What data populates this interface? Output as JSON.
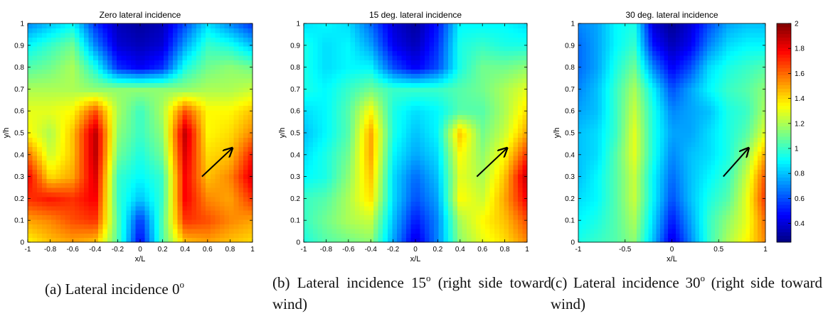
{
  "chart_data": [
    {
      "type": "heatmap",
      "title": "Zero lateral incidence",
      "xlabel": "x/L",
      "ylabel": "y/h",
      "xlim": [
        -1,
        1
      ],
      "ylim": [
        0,
        1
      ],
      "xticks": [
        "-1",
        "-0.8",
        "-0.6",
        "-0.4",
        "-0.2",
        "0",
        "0.2",
        "0.4",
        "0.6",
        "0.8",
        "1"
      ],
      "yticks": [
        "0",
        "0.1",
        "0.2",
        "0.3",
        "0.4",
        "0.5",
        "0.6",
        "0.7",
        "0.8",
        "0.9",
        "1"
      ],
      "x": [
        -1,
        -0.8,
        -0.6,
        -0.4,
        -0.2,
        0,
        0.2,
        0.4,
        0.6,
        0.8,
        1
      ],
      "y": [
        0,
        0.1,
        0.2,
        0.3,
        0.4,
        0.5,
        0.6,
        0.7,
        0.8,
        0.9,
        1
      ],
      "z": [
        [
          1.35,
          1.45,
          1.5,
          1.45,
          1.05,
          0.45,
          1.05,
          1.45,
          1.5,
          1.45,
          1.4
        ],
        [
          1.5,
          1.55,
          1.65,
          1.7,
          1.05,
          0.55,
          1.05,
          1.7,
          1.65,
          1.55,
          1.5
        ],
        [
          1.7,
          1.75,
          1.7,
          1.8,
          1.0,
          0.8,
          1.0,
          1.8,
          1.55,
          1.5,
          1.7
        ],
        [
          1.8,
          1.4,
          1.5,
          1.85,
          1.0,
          0.9,
          1.0,
          1.8,
          1.45,
          1.55,
          1.85
        ],
        [
          1.6,
          1.25,
          1.45,
          1.9,
          1.1,
          0.95,
          1.1,
          1.85,
          1.4,
          1.45,
          1.75
        ],
        [
          1.35,
          1.2,
          1.45,
          1.9,
          1.15,
          1.0,
          1.15,
          1.9,
          1.35,
          1.4,
          1.55
        ],
        [
          1.3,
          1.3,
          1.35,
          1.65,
          1.2,
          1.0,
          1.2,
          1.65,
          1.35,
          1.35,
          1.45
        ],
        [
          1.2,
          1.2,
          1.2,
          1.15,
          1.15,
          1.15,
          1.15,
          1.15,
          1.2,
          1.2,
          1.25
        ],
        [
          1.05,
          1.1,
          1.2,
          0.95,
          0.55,
          0.45,
          0.55,
          0.95,
          1.1,
          1.15,
          1.1
        ],
        [
          0.9,
          1.0,
          1.1,
          0.7,
          0.4,
          0.35,
          0.4,
          0.75,
          1.0,
          0.95,
          0.8
        ],
        [
          0.7,
          0.8,
          0.9,
          0.55,
          0.35,
          0.3,
          0.35,
          0.6,
          0.85,
          0.7,
          0.55
        ]
      ]
    },
    {
      "type": "heatmap",
      "title": "15 deg. lateral incidence",
      "xlabel": "x/L",
      "ylabel": "y/h",
      "xlim": [
        -1,
        1
      ],
      "ylim": [
        0,
        1
      ],
      "xticks": [
        "-1",
        "-0.8",
        "-0.6",
        "-0.4",
        "-0.2",
        "0",
        "0.2",
        "0.4",
        "0.6",
        "0.8",
        "1"
      ],
      "yticks": [
        "0",
        "0.1",
        "0.2",
        "0.3",
        "0.4",
        "0.5",
        "0.6",
        "0.7",
        "0.8",
        "0.9",
        "1"
      ],
      "x": [
        -1,
        -0.8,
        -0.6,
        -0.4,
        -0.2,
        0,
        0.2,
        0.4,
        0.6,
        0.8,
        1
      ],
      "y": [
        0,
        0.1,
        0.2,
        0.3,
        0.4,
        0.5,
        0.6,
        0.7,
        0.8,
        0.9,
        1
      ],
      "z": [
        [
          0.95,
          1.05,
          1.1,
          1.15,
          0.75,
          0.4,
          0.7,
          1.15,
          1.3,
          1.4,
          1.55
        ],
        [
          1.0,
          1.1,
          1.2,
          1.25,
          0.8,
          0.5,
          0.7,
          1.2,
          1.35,
          1.45,
          1.65
        ],
        [
          1.0,
          1.05,
          1.2,
          1.4,
          0.85,
          0.6,
          0.75,
          1.35,
          1.25,
          1.5,
          1.8
        ],
        [
          0.9,
          0.95,
          1.15,
          1.45,
          0.85,
          0.65,
          0.8,
          1.3,
          1.2,
          1.45,
          1.9
        ],
        [
          0.85,
          0.95,
          1.1,
          1.5,
          0.9,
          0.75,
          0.85,
          1.35,
          1.15,
          1.35,
          1.7
        ],
        [
          0.8,
          0.9,
          1.05,
          1.5,
          0.95,
          0.8,
          0.9,
          1.45,
          1.1,
          1.25,
          1.5
        ],
        [
          0.85,
          0.9,
          1.05,
          1.35,
          0.95,
          0.85,
          0.9,
          1.05,
          1.05,
          1.2,
          1.4
        ],
        [
          0.95,
          0.9,
          1.0,
          1.1,
          1.0,
          1.0,
          1.0,
          1.05,
          1.1,
          1.2,
          1.3
        ],
        [
          0.95,
          0.85,
          0.9,
          0.9,
          0.6,
          0.45,
          0.6,
          0.95,
          1.1,
          1.1,
          1.15
        ],
        [
          0.95,
          0.85,
          0.9,
          0.75,
          0.45,
          0.35,
          0.55,
          0.95,
          1.0,
          0.95,
          0.95
        ],
        [
          0.85,
          0.9,
          0.85,
          0.65,
          0.4,
          0.3,
          0.5,
          0.9,
          0.9,
          0.9,
          0.85
        ]
      ]
    },
    {
      "type": "heatmap",
      "title": "30 deg. lateral incidence",
      "xlabel": "x/L",
      "ylabel": "y/h",
      "xlim": [
        -1,
        1
      ],
      "ylim": [
        0,
        1
      ],
      "xticks": [
        "-1",
        "-0.5",
        "0",
        "0.5",
        "1"
      ],
      "yticks": [
        "0",
        "0.1",
        "0.2",
        "0.3",
        "0.4",
        "0.5",
        "0.6",
        "0.7",
        "0.8",
        "0.9",
        "1"
      ],
      "x": [
        -1,
        -0.8,
        -0.6,
        -0.4,
        -0.2,
        0,
        0.2,
        0.4,
        0.6,
        0.8,
        1
      ],
      "y": [
        0,
        0.1,
        0.2,
        0.3,
        0.4,
        0.5,
        0.6,
        0.7,
        0.8,
        0.9,
        1
      ],
      "z": [
        [
          0.95,
          1.0,
          1.05,
          1.15,
          0.8,
          0.4,
          0.7,
          1.0,
          1.2,
          1.35,
          1.55
        ],
        [
          0.9,
          0.95,
          1.05,
          1.2,
          0.85,
          0.5,
          0.75,
          1.0,
          1.15,
          1.3,
          1.6
        ],
        [
          0.85,
          0.9,
          1.05,
          1.25,
          0.9,
          0.6,
          0.8,
          0.95,
          1.05,
          1.3,
          1.7
        ],
        [
          0.8,
          0.9,
          1.05,
          1.25,
          0.9,
          0.65,
          0.8,
          0.9,
          1.0,
          1.25,
          1.65
        ],
        [
          0.8,
          0.85,
          1.05,
          1.3,
          0.95,
          0.7,
          0.8,
          0.85,
          0.95,
          1.15,
          1.5
        ],
        [
          0.8,
          0.85,
          1.0,
          1.3,
          0.95,
          0.75,
          0.75,
          0.85,
          0.95,
          1.05,
          1.3
        ],
        [
          0.75,
          0.8,
          1.0,
          1.25,
          0.95,
          0.7,
          0.75,
          0.8,
          0.95,
          1.0,
          1.2
        ],
        [
          0.7,
          0.8,
          1.0,
          1.2,
          0.9,
          0.6,
          0.75,
          0.9,
          1.0,
          1.05,
          1.15
        ],
        [
          0.65,
          0.75,
          0.95,
          1.1,
          0.7,
          0.45,
          0.6,
          0.85,
          0.95,
          1.0,
          1.05
        ],
        [
          0.65,
          0.75,
          0.9,
          1.0,
          0.5,
          0.35,
          0.45,
          0.7,
          0.85,
          0.9,
          0.9
        ],
        [
          0.7,
          0.75,
          0.9,
          0.95,
          0.4,
          0.28,
          0.4,
          0.6,
          0.75,
          0.8,
          0.8
        ]
      ]
    }
  ],
  "colorbar": {
    "range": [
      0.25,
      2
    ],
    "ticks": [
      "0.4",
      "0.6",
      "0.8",
      "1",
      "1.2",
      "1.4",
      "1.6",
      "1.8",
      "2"
    ],
    "tick_values": [
      0.4,
      0.6,
      0.8,
      1,
      1.2,
      1.4,
      1.6,
      1.8,
      2
    ],
    "colormap": "jet"
  },
  "arrows": [
    {
      "from": [
        0.55,
        0.3
      ],
      "to": [
        0.82,
        0.43
      ]
    },
    {
      "from": [
        0.55,
        0.3
      ],
      "to": [
        0.82,
        0.43
      ]
    },
    {
      "from": [
        0.55,
        0.3
      ],
      "to": [
        0.82,
        0.43
      ]
    }
  ],
  "captions": {
    "a": {
      "text": "(a) Lateral incidence 0",
      "sup": "o",
      "tail": ""
    },
    "b": {
      "text": "(b) Lateral incidence 15",
      "sup": "o",
      "tail": " (right side toward wind)"
    },
    "c": {
      "text": "(c) Lateral incidence 30",
      "sup": "o",
      "tail": " (right side toward wind)"
    }
  }
}
